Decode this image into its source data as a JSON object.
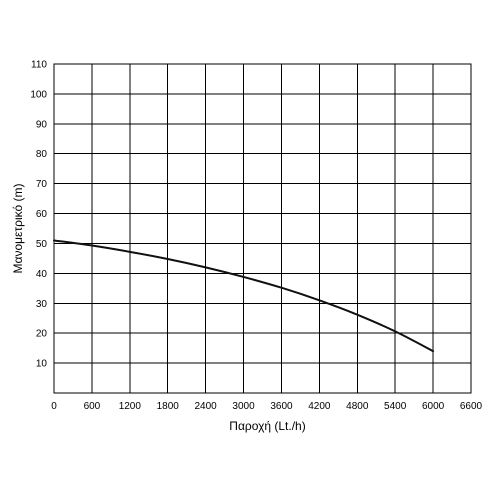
{
  "chart_data": {
    "type": "line",
    "title": "",
    "xlabel": "Παροχή (Lt./h)",
    "ylabel": "Μανομετρικό  (m)",
    "xlim": [
      0,
      6600
    ],
    "ylim": [
      0,
      110
    ],
    "x_ticks": [
      0,
      600,
      1200,
      1800,
      2400,
      3000,
      3600,
      4200,
      4800,
      5400,
      6000,
      6600
    ],
    "y_ticks": [
      10,
      20,
      30,
      40,
      50,
      60,
      70,
      80,
      90,
      100,
      110
    ],
    "x_tick_labels": [
      "0",
      "600",
      "1200",
      "1800",
      "2400",
      "3000",
      "3600",
      "4200",
      "4800",
      "5400",
      "6000",
      "6600"
    ],
    "y_tick_labels": [
      "10",
      "20",
      "30",
      "40",
      "50",
      "60",
      "70",
      "80",
      "90",
      "100",
      "110"
    ],
    "grid": true,
    "series": [
      {
        "x": [
          0,
          600,
          1200,
          1800,
          2400,
          3000,
          3600,
          4200,
          4800,
          5400,
          6000
        ],
        "y": [
          51,
          49.3,
          47.2,
          44.8,
          42,
          38.8,
          35.2,
          31,
          26.2,
          20.6,
          14
        ],
        "color": "#111111"
      }
    ]
  }
}
